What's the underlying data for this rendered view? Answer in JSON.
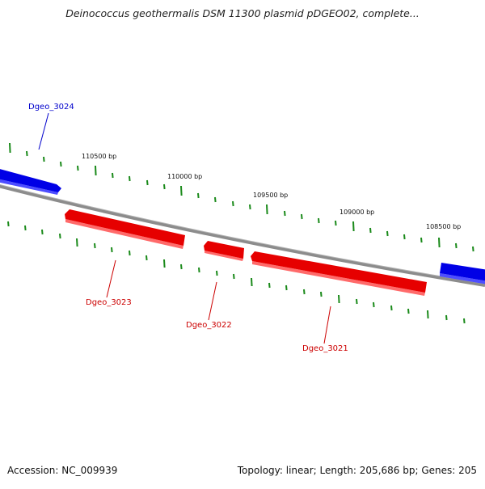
{
  "title": "Deinococcus geothermalis DSM 11300 plasmid pDGEO02, complete...",
  "footer": {
    "accession": "Accession: NC_009939",
    "summary": "Topology: linear; Length: 205,686 bp; Genes: 205"
  },
  "colors": {
    "forward_gene": "#0000e6",
    "reverse_gene": "#e60000",
    "tick": "#1a8a1a",
    "backbone": "#8c8c8c"
  },
  "scale_labels": [
    "110500 bp",
    "110000 bp",
    "109500 bp",
    "109000 bp",
    "108500 bp"
  ],
  "genes": [
    {
      "name": "Dgeo_3024",
      "strand": "forward"
    },
    {
      "name": "Dgeo_3023",
      "strand": "reverse"
    },
    {
      "name": "Dgeo_3022",
      "strand": "reverse"
    },
    {
      "name": "Dgeo_3021",
      "strand": "reverse"
    },
    {
      "name": "",
      "strand": "forward"
    }
  ]
}
